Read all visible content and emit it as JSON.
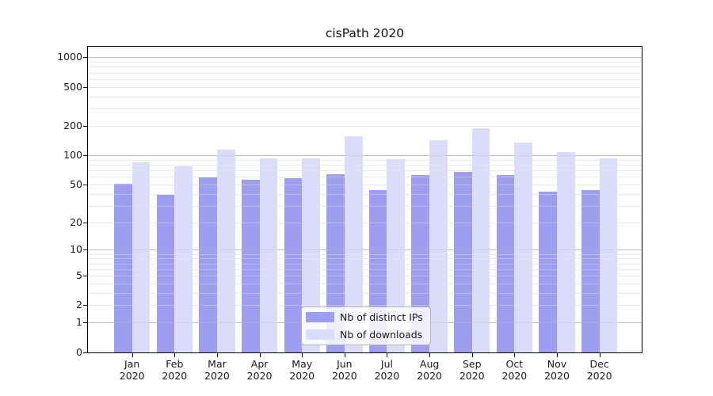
{
  "title": "cisPath 2020",
  "chart_data": {
    "type": "bar",
    "title": "cisPath 2020",
    "categories": [
      "Jan 2020",
      "Feb 2020",
      "Mar 2020",
      "Apr 2020",
      "May 2020",
      "Jun 2020",
      "Jul 2020",
      "Aug 2020",
      "Sep 2020",
      "Oct 2020",
      "Nov 2020",
      "Dec 2020"
    ],
    "series": [
      {
        "name": "Nb of distinct IPs",
        "color": "#9e9ef0",
        "values": [
          51,
          39,
          59,
          56,
          58,
          64,
          44,
          63,
          67,
          62,
          42,
          44
        ]
      },
      {
        "name": "Nb of downloads",
        "color": "#dbdbfa",
        "values": [
          85,
          77,
          115,
          93,
          93,
          156,
          91,
          142,
          190,
          135,
          107,
          93
        ]
      }
    ],
    "xlabel": "",
    "ylabel": "",
    "yscale": "log10(value+1)",
    "ylim": [
      0,
      1330
    ],
    "ytick_values": [
      1000,
      500,
      200,
      100,
      50,
      20,
      10,
      5,
      2,
      1,
      0
    ],
    "major_gridlines": [
      1,
      10,
      100,
      1000
    ],
    "minor_gridlines": [
      2,
      3,
      4,
      5,
      6,
      7,
      8,
      9,
      20,
      30,
      40,
      50,
      60,
      70,
      80,
      90,
      200,
      300,
      400,
      500,
      600,
      700,
      800,
      900
    ],
    "grid": true,
    "legend_position": "inside-bottom-center"
  },
  "colors": {
    "grid_minor": "#eaeaea",
    "grid_major": "#bdbdbd",
    "axis": "#000000",
    "text": "#1a1a1a",
    "legend_border": "#b3b3b3",
    "background": "#ffffff"
  }
}
